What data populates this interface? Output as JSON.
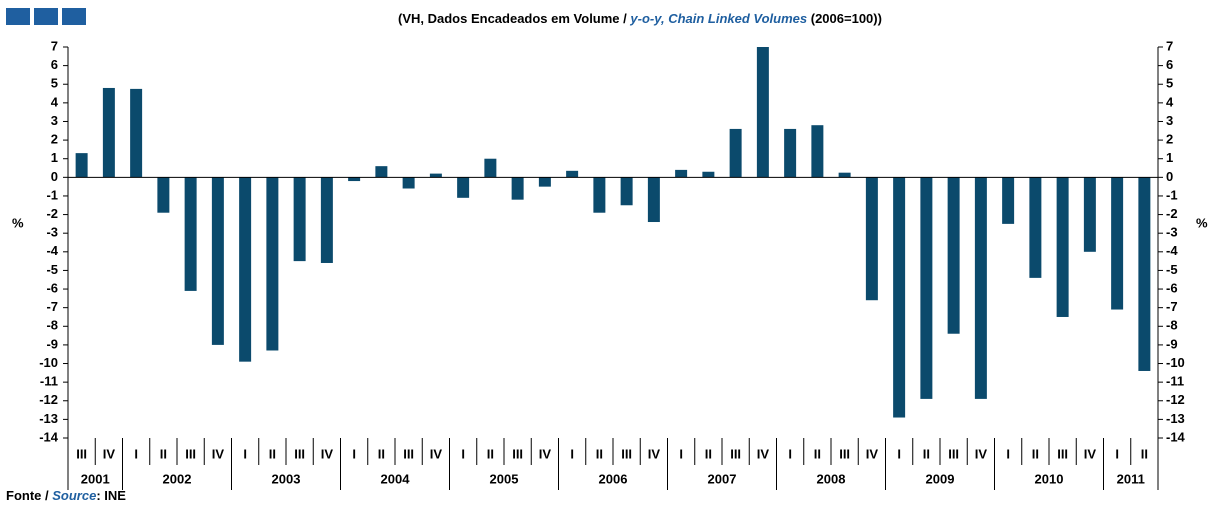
{
  "chart_data": {
    "type": "bar",
    "title_pt": "(VH, Dados Encadeados em Volume /",
    "title_en": "y-o-y, Chain Linked Volumes",
    "title_suffix": "(2006=100))",
    "y_label": "%",
    "y2_label": "%",
    "source_pt": "Fonte /",
    "source_en": "Source",
    "source_suffix": ": INE",
    "color": "#0b4a6c",
    "categories": [
      "III",
      "IV",
      "I",
      "II",
      "III",
      "IV",
      "I",
      "II",
      "III",
      "IV",
      "I",
      "II",
      "III",
      "IV",
      "I",
      "II",
      "III",
      "IV",
      "I",
      "II",
      "III",
      "IV",
      "I",
      "II",
      "III",
      "IV",
      "I",
      "II",
      "III",
      "IV",
      "I",
      "II",
      "III",
      "IV",
      "I",
      "II",
      "III",
      "IV",
      "I",
      "II"
    ],
    "years": [
      "2001",
      "2002",
      "2003",
      "2004",
      "2005",
      "2006",
      "2007",
      "2008",
      "2009",
      "2010",
      "2011"
    ],
    "values": [
      1.3,
      4.8,
      4.75,
      -1.9,
      -6.1,
      -9.0,
      -9.9,
      -9.3,
      -4.5,
      -4.6,
      -0.2,
      0.6,
      -0.6,
      0.2,
      -1.1,
      1.0,
      -1.2,
      -0.5,
      0.35,
      -1.9,
      -1.5,
      -2.4,
      0.4,
      0.3,
      2.6,
      7.0,
      2.6,
      2.8,
      0.25,
      -6.6,
      -12.9,
      -11.9,
      -8.4,
      -11.9,
      -2.5,
      -5.4,
      -7.5,
      -4.0,
      -7.1,
      -10.4
    ],
    "ylim": [
      -14,
      7
    ],
    "yticks": [
      -14,
      -13,
      -12,
      -11,
      -10,
      -9,
      -8,
      -7,
      -6,
      -5,
      -4,
      -3,
      -2,
      -1,
      0,
      1,
      2,
      3,
      4,
      5,
      6,
      7
    ]
  }
}
